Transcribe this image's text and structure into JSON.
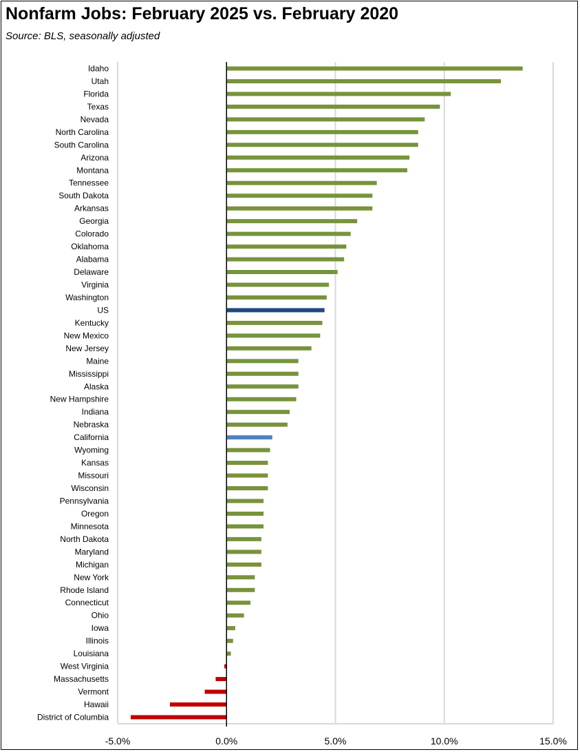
{
  "header": {
    "title": "Nonfarm Jobs:  February 2025 vs. February 2020",
    "subtitle": "Source:  BLS, seasonally adjusted"
  },
  "colors": {
    "default": "#77933C",
    "us": "#1F497D",
    "california": "#4F81BD",
    "negative": "#C00000",
    "grid": "#D9D9D9",
    "axis": "#000000"
  },
  "chart_data": {
    "type": "bar",
    "orientation": "horizontal",
    "title": "Nonfarm Jobs:  February 2025 vs. February 2020",
    "subtitle": "Source:  BLS, seasonally adjusted",
    "xlim": [
      -5,
      15
    ],
    "x_ticks": [
      -5,
      0,
      5,
      10,
      15
    ],
    "x_tick_labels": [
      "-5.0%",
      "0.0%",
      "5.0%",
      "10.0%",
      "15.0%"
    ],
    "grid": "vertical",
    "categories": [
      "Idaho",
      "Utah",
      "Florida",
      "Texas",
      "Nevada",
      "North Carolina",
      "South Carolina",
      "Arizona",
      "Montana",
      "Tennessee",
      "South Dakota",
      "Arkansas",
      "Georgia",
      "Colorado",
      "Oklahoma",
      "Alabama",
      "Delaware",
      "Virginia",
      "Washington",
      "US",
      "Kentucky",
      "New Mexico",
      "New Jersey",
      "Maine",
      "Mississippi",
      "Alaska",
      "New Hampshire",
      "Indiana",
      "Nebraska",
      "California",
      "Wyoming",
      "Kansas",
      "Missouri",
      "Wisconsin",
      "Pennsylvania",
      "Oregon",
      "Minnesota",
      "North Dakota",
      "Maryland",
      "Michigan",
      "New York",
      "Rhode Island",
      "Connecticut",
      "Ohio",
      "Iowa",
      "Illinois",
      "Louisiana",
      "West Virginia",
      "Massachusetts",
      "Vermont",
      "Hawaii",
      "District of Columbia"
    ],
    "values": [
      13.6,
      12.6,
      10.3,
      9.8,
      9.1,
      8.8,
      8.8,
      8.4,
      8.3,
      6.9,
      6.7,
      6.7,
      6.0,
      5.7,
      5.5,
      5.4,
      5.1,
      4.7,
      4.6,
      4.5,
      4.4,
      4.3,
      3.9,
      3.3,
      3.3,
      3.3,
      3.2,
      2.9,
      2.8,
      2.1,
      2.0,
      1.9,
      1.9,
      1.9,
      1.7,
      1.7,
      1.7,
      1.6,
      1.6,
      1.6,
      1.3,
      1.3,
      1.1,
      0.8,
      0.4,
      0.3,
      0.2,
      -0.1,
      -0.5,
      -1.0,
      -2.6,
      -4.4
    ]
  }
}
